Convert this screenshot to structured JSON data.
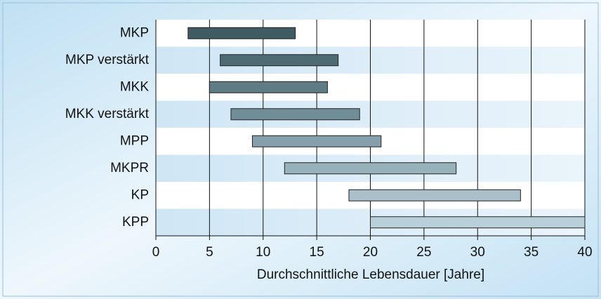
{
  "chart_data": {
    "type": "range-bar",
    "categories": [
      "MKP",
      "MKP verstärkt",
      "MKK",
      "MKK verstärkt",
      "MPP",
      "MKPR",
      "KP",
      "KPP"
    ],
    "starts": [
      3,
      6,
      5,
      7,
      9,
      12,
      18,
      20
    ],
    "ends": [
      13,
      17,
      16,
      19,
      21,
      28,
      34,
      40
    ],
    "colors": [
      "#3f5b64",
      "#4e6a73",
      "#5f7b85",
      "#718d97",
      "#85a0aa",
      "#97b1bb",
      "#a9c0ca",
      "#b9cfd9"
    ],
    "xlabel": "Durchschnittliche Lebensdauer [Jahre]",
    "xlim": [
      0,
      40
    ],
    "xticks": [
      0,
      5,
      10,
      15,
      20,
      25,
      30,
      35,
      40
    ],
    "grid": true
  }
}
